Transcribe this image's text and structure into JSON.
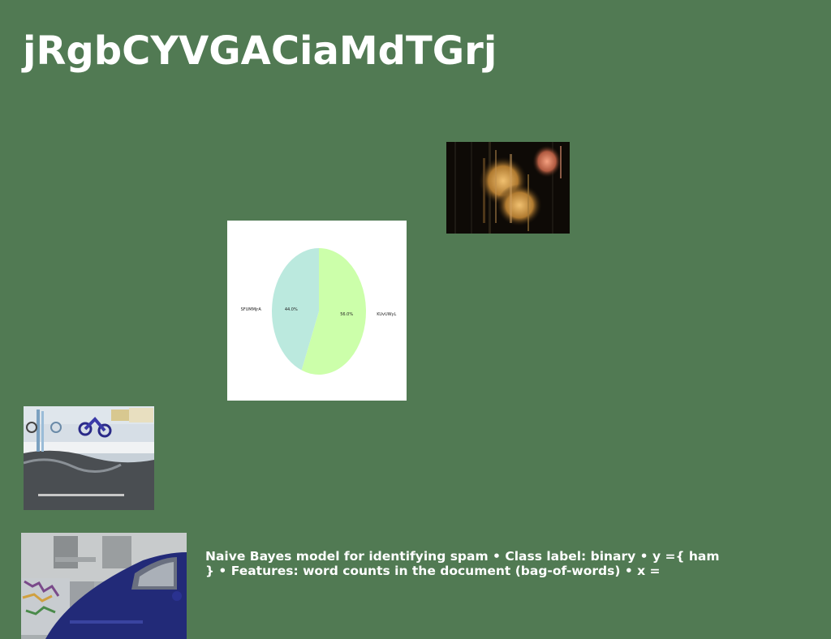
{
  "slide": {
    "title": "jRgbCYVGACiaMdTGrj",
    "background_color": "#517a53",
    "body_text": "Naive Bayes model for identifying spam • Class label: binary • y ={ ham } • Features: word counts in the document (bag-of-words) • x ="
  },
  "images": {
    "candles": "candle-lights-photo",
    "street": "street-motorcycle-photo",
    "car": "blue-beetle-car-photo"
  },
  "chart_data": {
    "type": "pie",
    "slices": [
      {
        "label": "SFUMMjrA",
        "value": 44.0,
        "pct_label": "44.0%",
        "color": "#bbe9de"
      },
      {
        "label": "KUvUWyL",
        "value": 56.0,
        "pct_label": "56.0%",
        "color": "#ccffaa"
      }
    ],
    "start_angle": 90,
    "direction": "counterclockwise"
  }
}
